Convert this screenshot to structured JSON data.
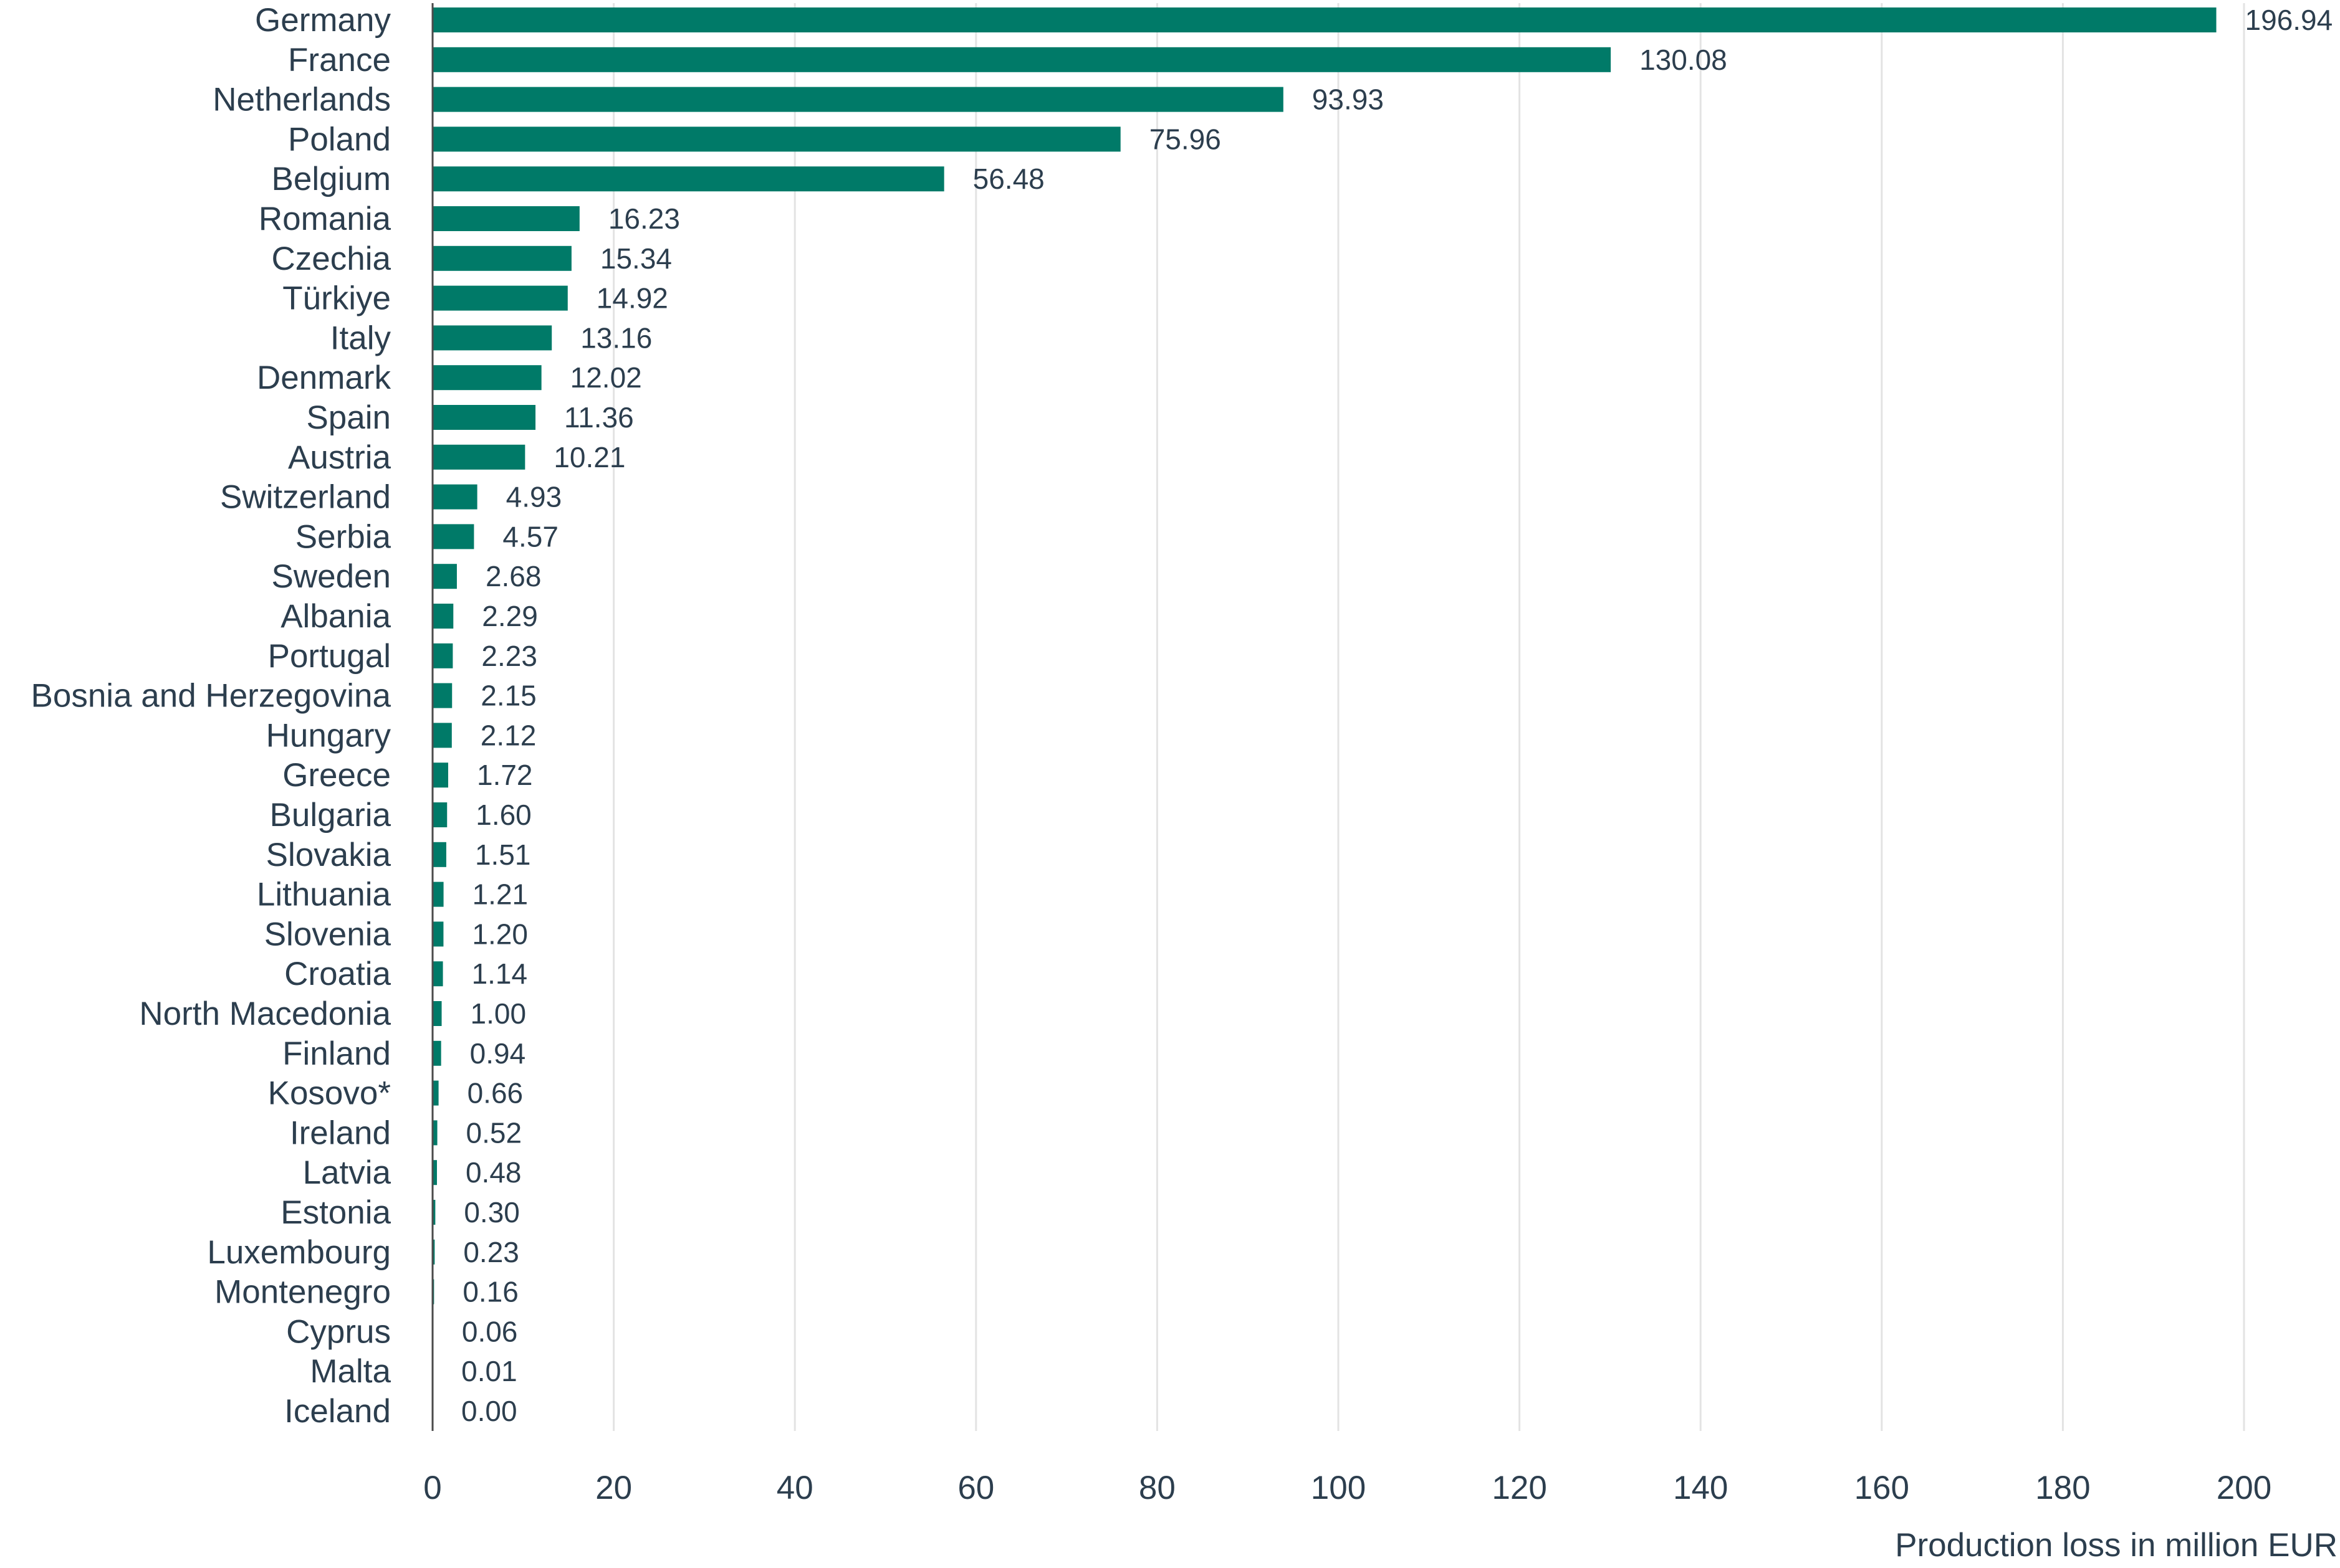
{
  "chart_data": {
    "type": "bar",
    "orientation": "horizontal",
    "categories": [
      "Germany",
      "France",
      "Netherlands",
      "Poland",
      "Belgium",
      "Romania",
      "Czechia",
      "Türkiye",
      "Italy",
      "Denmark",
      "Spain",
      "Austria",
      "Switzerland",
      "Serbia",
      "Sweden",
      "Albania",
      "Portugal",
      "Bosnia and Herzegovina",
      "Hungary",
      "Greece",
      "Bulgaria",
      "Slovakia",
      "Lithuania",
      "Slovenia",
      "Croatia",
      "North Macedonia",
      "Finland",
      "Kosovo*",
      "Ireland",
      "Latvia",
      "Estonia",
      "Luxembourg",
      "Montenegro",
      "Cyprus",
      "Malta",
      "Iceland"
    ],
    "values": [
      196.94,
      130.08,
      93.93,
      75.96,
      56.48,
      16.23,
      15.34,
      14.92,
      13.16,
      12.02,
      11.36,
      10.21,
      4.93,
      4.57,
      2.68,
      2.29,
      2.23,
      2.15,
      2.12,
      1.72,
      1.6,
      1.51,
      1.21,
      1.2,
      1.14,
      1.0,
      0.94,
      0.66,
      0.52,
      0.48,
      0.3,
      0.23,
      0.16,
      0.06,
      0.01,
      0.0
    ],
    "value_labels": [
      "196.94",
      "130.08",
      "93.93",
      "75.96",
      "56.48",
      "16.23",
      "15.34",
      "14.92",
      "13.16",
      "12.02",
      "11.36",
      "10.21",
      "4.93",
      "4.57",
      "2.68",
      "2.29",
      "2.23",
      "2.15",
      "2.12",
      "1.72",
      "1.60",
      "1.51",
      "1.21",
      "1.20",
      "1.14",
      "1.00",
      "0.94",
      "0.66",
      "0.52",
      "0.48",
      "0.30",
      "0.23",
      "0.16",
      "0.06",
      "0.01",
      "0.00"
    ],
    "xlabel": "Production loss in million EUR",
    "ylabel": "",
    "xlim": [
      0,
      200
    ],
    "x_ticks": [
      "0",
      "20",
      "40",
      "60",
      "80",
      "100",
      "120",
      "140",
      "160",
      "180",
      "200"
    ],
    "grid": "vertical",
    "legend": "none",
    "bar_color": "#007a68"
  }
}
